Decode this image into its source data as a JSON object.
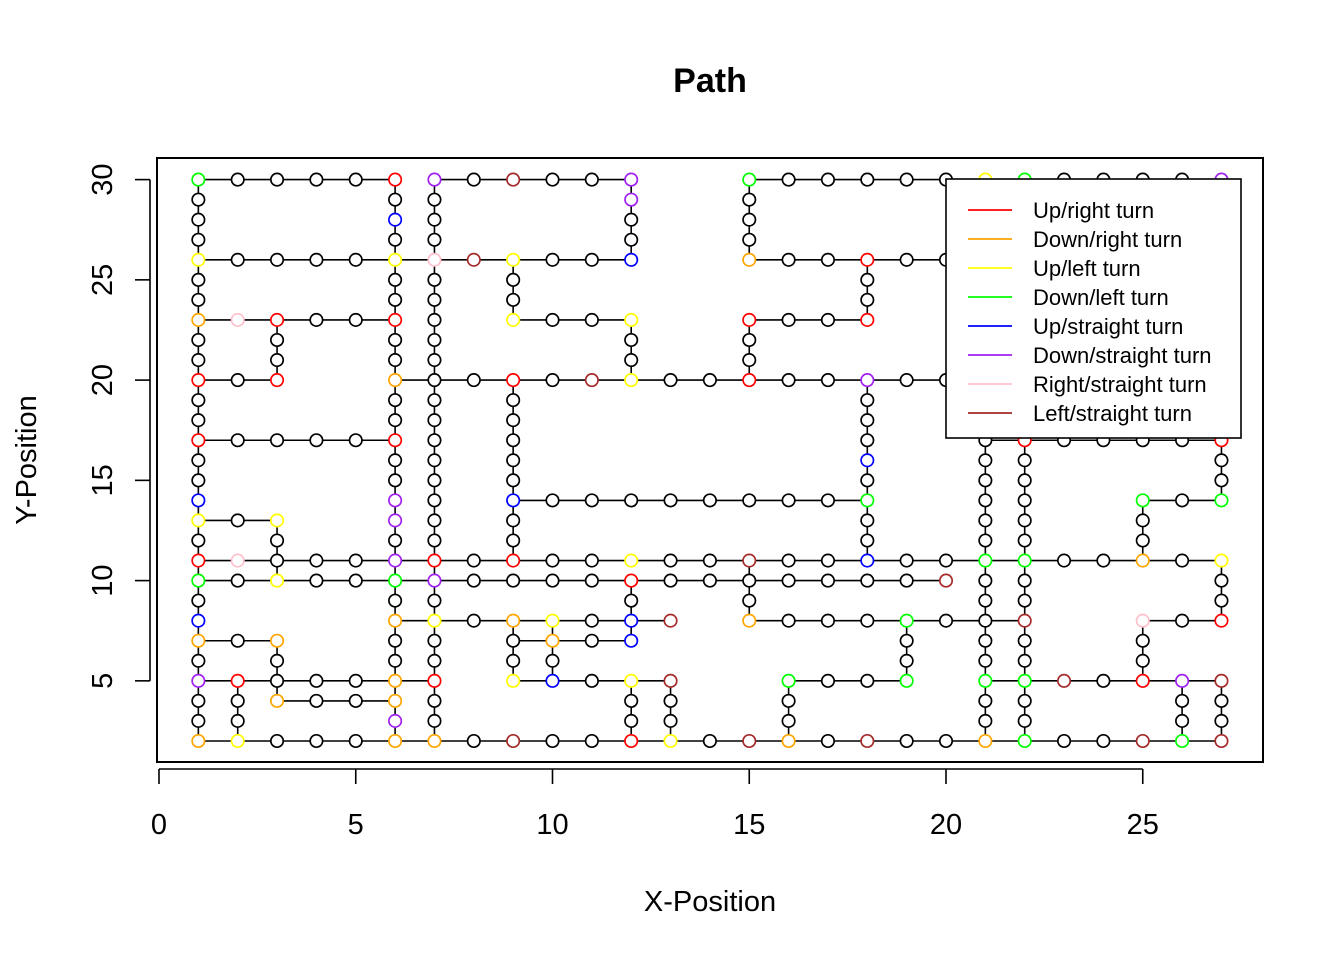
{
  "chart_data": {
    "type": "scatter",
    "title": "Path",
    "xlabel": "X-Position",
    "ylabel": "Y-Position",
    "xlim": [
      0,
      28
    ],
    "ylim": [
      1,
      31
    ],
    "x_ticks": [
      0,
      5,
      10,
      15,
      20,
      25
    ],
    "y_ticks": [
      5,
      10,
      15,
      20,
      25,
      30
    ],
    "legend_position": "top-right",
    "legend": [
      {
        "label": "Up/right turn",
        "color": "#ff0000",
        "key": "UR"
      },
      {
        "label": "Down/right turn",
        "color": "#ffa500",
        "key": "DR"
      },
      {
        "label": "Up/left turn",
        "color": "#ffff00",
        "key": "UL"
      },
      {
        "label": "Down/left turn",
        "color": "#00ff00",
        "key": "DL"
      },
      {
        "label": "Up/straight turn",
        "color": "#0000ff",
        "key": "US"
      },
      {
        "label": "Down/straight turn",
        "color": "#a020f0",
        "key": "DS"
      },
      {
        "label": "Right/straight turn",
        "color": "#ffc0cb",
        "key": "RS"
      },
      {
        "label": "Left/straight turn",
        "color": "#a52a2a",
        "key": "LS"
      }
    ],
    "default_point_color": "#000000",
    "segments": [
      [
        [
          1,
          30
        ],
        [
          6,
          30
        ]
      ],
      [
        [
          7,
          30
        ],
        [
          12,
          30
        ]
      ],
      [
        [
          15,
          30
        ],
        [
          27,
          30
        ]
      ],
      [
        [
          1,
          26
        ],
        [
          12,
          26
        ]
      ],
      [
        [
          15,
          26
        ],
        [
          21,
          26
        ]
      ],
      [
        [
          1,
          23
        ],
        [
          6,
          23
        ]
      ],
      [
        [
          9,
          23
        ],
        [
          12,
          23
        ]
      ],
      [
        [
          15,
          23
        ],
        [
          18,
          23
        ]
      ],
      [
        [
          1,
          20
        ],
        [
          3,
          20
        ]
      ],
      [
        [
          6,
          20
        ],
        [
          21,
          20
        ]
      ],
      [
        [
          1,
          17
        ],
        [
          6,
          17
        ]
      ],
      [
        [
          21,
          17
        ],
        [
          27,
          17
        ]
      ],
      [
        [
          9,
          14
        ],
        [
          18,
          14
        ]
      ],
      [
        [
          25,
          14
        ],
        [
          27,
          14
        ]
      ],
      [
        [
          1,
          13
        ],
        [
          3,
          13
        ]
      ],
      [
        [
          1,
          11
        ],
        [
          27,
          11
        ]
      ],
      [
        [
          1,
          10
        ],
        [
          20,
          10
        ]
      ],
      [
        [
          6,
          8
        ],
        [
          13,
          8
        ]
      ],
      [
        [
          15,
          8
        ],
        [
          19,
          8
        ]
      ],
      [
        [
          19,
          8
        ],
        [
          22,
          8
        ]
      ],
      [
        [
          25,
          8
        ],
        [
          27,
          8
        ]
      ],
      [
        [
          1,
          7
        ],
        [
          3,
          7
        ]
      ],
      [
        [
          9,
          7
        ],
        [
          12,
          7
        ]
      ],
      [
        [
          1,
          5
        ],
        [
          7,
          5
        ]
      ],
      [
        [
          9,
          5
        ],
        [
          13,
          5
        ]
      ],
      [
        [
          16,
          5
        ],
        [
          19,
          5
        ]
      ],
      [
        [
          21,
          5
        ],
        [
          27,
          5
        ]
      ],
      [
        [
          3,
          4
        ],
        [
          6,
          4
        ]
      ],
      [
        [
          1,
          2
        ],
        [
          27,
          2
        ]
      ],
      [
        [
          1,
          2
        ],
        [
          1,
          30
        ]
      ],
      [
        [
          2,
          2
        ],
        [
          2,
          5
        ]
      ],
      [
        [
          3,
          4
        ],
        [
          3,
          7
        ]
      ],
      [
        [
          3,
          10
        ],
        [
          3,
          13
        ]
      ],
      [
        [
          3,
          20
        ],
        [
          3,
          23
        ]
      ],
      [
        [
          6,
          2
        ],
        [
          6,
          30
        ]
      ],
      [
        [
          7,
          2
        ],
        [
          7,
          30
        ]
      ],
      [
        [
          9,
          5
        ],
        [
          9,
          8
        ]
      ],
      [
        [
          9,
          11
        ],
        [
          9,
          20
        ]
      ],
      [
        [
          9,
          23
        ],
        [
          9,
          26
        ]
      ],
      [
        [
          10,
          5
        ],
        [
          10,
          8
        ]
      ],
      [
        [
          12,
          7
        ],
        [
          12,
          10
        ]
      ],
      [
        [
          12,
          2
        ],
        [
          12,
          5
        ]
      ],
      [
        [
          12,
          20
        ],
        [
          12,
          23
        ]
      ],
      [
        [
          12,
          26
        ],
        [
          12,
          30
        ]
      ],
      [
        [
          13,
          2
        ],
        [
          13,
          5
        ]
      ],
      [
        [
          15,
          8
        ],
        [
          15,
          11
        ]
      ],
      [
        [
          15,
          20
        ],
        [
          15,
          23
        ]
      ],
      [
        [
          15,
          26
        ],
        [
          15,
          30
        ]
      ],
      [
        [
          16,
          2
        ],
        [
          16,
          5
        ]
      ],
      [
        [
          18,
          11
        ],
        [
          18,
          20
        ]
      ],
      [
        [
          18,
          23
        ],
        [
          18,
          26
        ]
      ],
      [
        [
          19,
          5
        ],
        [
          19,
          8
        ]
      ],
      [
        [
          21,
          2
        ],
        [
          21,
          17
        ]
      ],
      [
        [
          22,
          2
        ],
        [
          22,
          17
        ]
      ],
      [
        [
          25,
          5
        ],
        [
          25,
          8
        ]
      ],
      [
        [
          25,
          11
        ],
        [
          25,
          14
        ]
      ],
      [
        [
          26,
          2
        ],
        [
          26,
          5
        ]
      ],
      [
        [
          27,
          2
        ],
        [
          27,
          5
        ]
      ],
      [
        [
          27,
          8
        ],
        [
          27,
          11
        ]
      ],
      [
        [
          27,
          14
        ],
        [
          27,
          17
        ]
      ]
    ],
    "turn_points": [
      {
        "x": 1,
        "y": 30,
        "type": "DL"
      },
      {
        "x": 6,
        "y": 30,
        "type": "UR"
      },
      {
        "x": 7,
        "y": 30,
        "type": "DS"
      },
      {
        "x": 9,
        "y": 30,
        "type": "LS"
      },
      {
        "x": 12,
        "y": 30,
        "type": "DS"
      },
      {
        "x": 15,
        "y": 30,
        "type": "DL"
      },
      {
        "x": 21,
        "y": 30,
        "type": "UL"
      },
      {
        "x": 22,
        "y": 30,
        "type": "DL"
      },
      {
        "x": 27,
        "y": 30,
        "type": "DS"
      },
      {
        "x": 12,
        "y": 29,
        "type": "DS"
      },
      {
        "x": 6,
        "y": 28,
        "type": "US"
      },
      {
        "x": 1,
        "y": 26,
        "type": "UL"
      },
      {
        "x": 6,
        "y": 26,
        "type": "UL"
      },
      {
        "x": 7,
        "y": 26,
        "type": "RS"
      },
      {
        "x": 8,
        "y": 26,
        "type": "LS"
      },
      {
        "x": 9,
        "y": 26,
        "type": "UL"
      },
      {
        "x": 12,
        "y": 26,
        "type": "US"
      },
      {
        "x": 15,
        "y": 26,
        "type": "DR"
      },
      {
        "x": 18,
        "y": 26,
        "type": "UR"
      },
      {
        "x": 1,
        "y": 23,
        "type": "DR"
      },
      {
        "x": 2,
        "y": 23,
        "type": "RS"
      },
      {
        "x": 3,
        "y": 23,
        "type": "UR"
      },
      {
        "x": 6,
        "y": 23,
        "type": "UR"
      },
      {
        "x": 9,
        "y": 23,
        "type": "UL"
      },
      {
        "x": 12,
        "y": 23,
        "type": "UL"
      },
      {
        "x": 15,
        "y": 23,
        "type": "UR"
      },
      {
        "x": 18,
        "y": 23,
        "type": "UR"
      },
      {
        "x": 1,
        "y": 20,
        "type": "UR"
      },
      {
        "x": 3,
        "y": 20,
        "type": "UR"
      },
      {
        "x": 6,
        "y": 20,
        "type": "DR"
      },
      {
        "x": 9,
        "y": 20,
        "type": "UR"
      },
      {
        "x": 11,
        "y": 20,
        "type": "LS"
      },
      {
        "x": 12,
        "y": 20,
        "type": "UL"
      },
      {
        "x": 15,
        "y": 20,
        "type": "UR"
      },
      {
        "x": 18,
        "y": 20,
        "type": "DS"
      },
      {
        "x": 1,
        "y": 17,
        "type": "UR"
      },
      {
        "x": 6,
        "y": 17,
        "type": "UR"
      },
      {
        "x": 22,
        "y": 17,
        "type": "UR"
      },
      {
        "x": 27,
        "y": 17,
        "type": "UR"
      },
      {
        "x": 18,
        "y": 16,
        "type": "US"
      },
      {
        "x": 1,
        "y": 14,
        "type": "US"
      },
      {
        "x": 6,
        "y": 14,
        "type": "DS"
      },
      {
        "x": 9,
        "y": 14,
        "type": "US"
      },
      {
        "x": 18,
        "y": 14,
        "type": "DL"
      },
      {
        "x": 25,
        "y": 14,
        "type": "DL"
      },
      {
        "x": 27,
        "y": 14,
        "type": "DL"
      },
      {
        "x": 1,
        "y": 13,
        "type": "UL"
      },
      {
        "x": 3,
        "y": 13,
        "type": "UL"
      },
      {
        "x": 6,
        "y": 13,
        "type": "DS"
      },
      {
        "x": 1,
        "y": 11,
        "type": "UR"
      },
      {
        "x": 2,
        "y": 11,
        "type": "RS"
      },
      {
        "x": 6,
        "y": 11,
        "type": "DS"
      },
      {
        "x": 7,
        "y": 11,
        "type": "UR"
      },
      {
        "x": 9,
        "y": 11,
        "type": "UR"
      },
      {
        "x": 12,
        "y": 11,
        "type": "UL"
      },
      {
        "x": 15,
        "y": 11,
        "type": "LS"
      },
      {
        "x": 18,
        "y": 11,
        "type": "US"
      },
      {
        "x": 21,
        "y": 11,
        "type": "DL"
      },
      {
        "x": 22,
        "y": 11,
        "type": "DL"
      },
      {
        "x": 25,
        "y": 11,
        "type": "DR"
      },
      {
        "x": 27,
        "y": 11,
        "type": "UL"
      },
      {
        "x": 1,
        "y": 10,
        "type": "DL"
      },
      {
        "x": 3,
        "y": 10,
        "type": "UL"
      },
      {
        "x": 6,
        "y": 10,
        "type": "DL"
      },
      {
        "x": 7,
        "y": 10,
        "type": "DS"
      },
      {
        "x": 12,
        "y": 10,
        "type": "UR"
      },
      {
        "x": 20,
        "y": 10,
        "type": "LS"
      },
      {
        "x": 1,
        "y": 8,
        "type": "US"
      },
      {
        "x": 6,
        "y": 8,
        "type": "DR"
      },
      {
        "x": 7,
        "y": 8,
        "type": "UL"
      },
      {
        "x": 9,
        "y": 8,
        "type": "DR"
      },
      {
        "x": 10,
        "y": 8,
        "type": "UL"
      },
      {
        "x": 12,
        "y": 8,
        "type": "US"
      },
      {
        "x": 13,
        "y": 8,
        "type": "LS"
      },
      {
        "x": 15,
        "y": 8,
        "type": "DR"
      },
      {
        "x": 19,
        "y": 8,
        "type": "DL"
      },
      {
        "x": 22,
        "y": 8,
        "type": "LS"
      },
      {
        "x": 25,
        "y": 8,
        "type": "RS"
      },
      {
        "x": 27,
        "y": 8,
        "type": "UR"
      },
      {
        "x": 1,
        "y": 7,
        "type": "DR"
      },
      {
        "x": 3,
        "y": 7,
        "type": "DR"
      },
      {
        "x": 10,
        "y": 7,
        "type": "DR"
      },
      {
        "x": 12,
        "y": 7,
        "type": "US"
      },
      {
        "x": 1,
        "y": 5,
        "type": "DS"
      },
      {
        "x": 2,
        "y": 5,
        "type": "UR"
      },
      {
        "x": 6,
        "y": 5,
        "type": "DR"
      },
      {
        "x": 7,
        "y": 5,
        "type": "UR"
      },
      {
        "x": 9,
        "y": 5,
        "type": "UL"
      },
      {
        "x": 10,
        "y": 5,
        "type": "US"
      },
      {
        "x": 12,
        "y": 5,
        "type": "UL"
      },
      {
        "x": 13,
        "y": 5,
        "type": "LS"
      },
      {
        "x": 16,
        "y": 5,
        "type": "DL"
      },
      {
        "x": 19,
        "y": 5,
        "type": "DL"
      },
      {
        "x": 21,
        "y": 5,
        "type": "DL"
      },
      {
        "x": 22,
        "y": 5,
        "type": "DL"
      },
      {
        "x": 23,
        "y": 5,
        "type": "LS"
      },
      {
        "x": 25,
        "y": 5,
        "type": "UR"
      },
      {
        "x": 26,
        "y": 5,
        "type": "DS"
      },
      {
        "x": 27,
        "y": 5,
        "type": "LS"
      },
      {
        "x": 3,
        "y": 4,
        "type": "DR"
      },
      {
        "x": 6,
        "y": 4,
        "type": "DR"
      },
      {
        "x": 6,
        "y": 3,
        "type": "DS"
      },
      {
        "x": 1,
        "y": 2,
        "type": "DR"
      },
      {
        "x": 2,
        "y": 2,
        "type": "UL"
      },
      {
        "x": 6,
        "y": 2,
        "type": "DR"
      },
      {
        "x": 7,
        "y": 2,
        "type": "DR"
      },
      {
        "x": 9,
        "y": 2,
        "type": "LS"
      },
      {
        "x": 12,
        "y": 2,
        "type": "UR"
      },
      {
        "x": 13,
        "y": 2,
        "type": "UL"
      },
      {
        "x": 15,
        "y": 2,
        "type": "LS"
      },
      {
        "x": 16,
        "y": 2,
        "type": "DR"
      },
      {
        "x": 18,
        "y": 2,
        "type": "LS"
      },
      {
        "x": 21,
        "y": 2,
        "type": "DR"
      },
      {
        "x": 22,
        "y": 2,
        "type": "DL"
      },
      {
        "x": 25,
        "y": 2,
        "type": "LS"
      },
      {
        "x": 26,
        "y": 2,
        "type": "DL"
      },
      {
        "x": 27,
        "y": 2,
        "type": "LS"
      }
    ]
  }
}
